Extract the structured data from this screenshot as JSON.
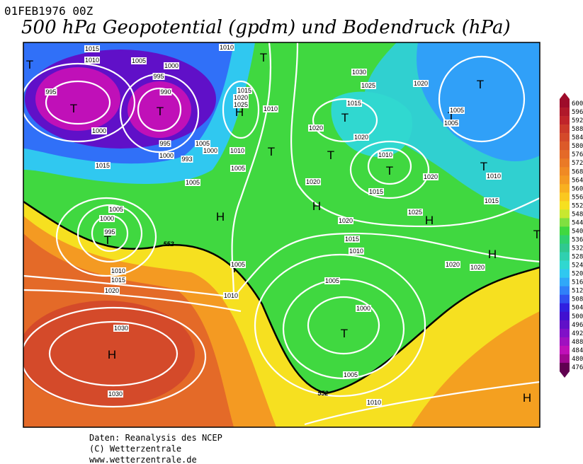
{
  "header": {
    "date": "01FEB1976 00Z",
    "title": "500 hPa Geopotential (gpdm) und Bodendruck (hPa)"
  },
  "colorbar": {
    "levels": [
      {
        "value": 600,
        "color": "#9e0b2a"
      },
      {
        "value": 596,
        "color": "#b0182a"
      },
      {
        "value": 592,
        "color": "#c0242a"
      },
      {
        "value": 588,
        "color": "#cc3a2a"
      },
      {
        "value": 584,
        "color": "#d44a2a"
      },
      {
        "value": 580,
        "color": "#dc5a2a"
      },
      {
        "value": 576,
        "color": "#e46a28"
      },
      {
        "value": 572,
        "color": "#ea7a26"
      },
      {
        "value": 568,
        "color": "#f08a24"
      },
      {
        "value": 564,
        "color": "#f49a22"
      },
      {
        "value": 560,
        "color": "#f8b020"
      },
      {
        "value": 556,
        "color": "#fac820"
      },
      {
        "value": 552,
        "color": "#f6e020"
      },
      {
        "value": 548,
        "color": "#c8e830"
      },
      {
        "value": 544,
        "color": "#80e040"
      },
      {
        "value": 540,
        "color": "#40d840"
      },
      {
        "value": 536,
        "color": "#30d070"
      },
      {
        "value": 532,
        "color": "#30c890"
      },
      {
        "value": 528,
        "color": "#30d0b0"
      },
      {
        "value": 524,
        "color": "#30d8d0"
      },
      {
        "value": 520,
        "color": "#30c8f0"
      },
      {
        "value": 516,
        "color": "#30a8f8"
      },
      {
        "value": 512,
        "color": "#3080f8"
      },
      {
        "value": 508,
        "color": "#3050f0"
      },
      {
        "value": 504,
        "color": "#3020e0"
      },
      {
        "value": 500,
        "color": "#4010d0"
      },
      {
        "value": 496,
        "color": "#6010c8"
      },
      {
        "value": 492,
        "color": "#8010c8"
      },
      {
        "value": 488,
        "color": "#a010c0"
      },
      {
        "value": 484,
        "color": "#c010b8"
      },
      {
        "value": 480,
        "color": "#a00890"
      },
      {
        "value": 476,
        "color": "#600050"
      }
    ]
  },
  "map": {
    "centers": [
      "T",
      "T",
      "T",
      "T",
      "T",
      "T",
      "T",
      "T",
      "T",
      "T",
      "T",
      "T",
      "T",
      "T",
      "T",
      "H",
      "H",
      "H",
      "H",
      "H",
      "H",
      "H"
    ],
    "isobar_labels": [
      "1015",
      "1010",
      "1005",
      "995",
      "1000",
      "990",
      "995",
      "1000",
      "995",
      "1000",
      "1005",
      "1000",
      "993",
      "1015",
      "1005",
      "1005",
      "1010",
      "1010",
      "1015",
      "1020",
      "1025",
      "1020",
      "1015",
      "1020",
      "1030",
      "1025",
      "1020",
      "1005",
      "1005",
      "1010",
      "1020",
      "1010",
      "1015",
      "1015",
      "1025",
      "1020",
      "1020",
      "1015",
      "1010",
      "1020",
      "1020",
      "1005",
      "1000",
      "995",
      "1010",
      "1015",
      "1020",
      "1010",
      "1005",
      "1005",
      "1000",
      "1005",
      "1010",
      "1030",
      "1030",
      "1010"
    ],
    "contour_labels": [
      "552",
      "552"
    ]
  },
  "footer": [
    "Daten: Reanalysis des NCEP",
    "(C) Wetterzentrale",
    "www.wetterzentrale.de"
  ]
}
